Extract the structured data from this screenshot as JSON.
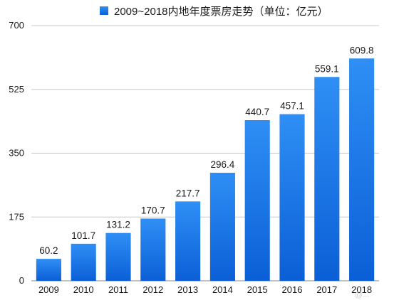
{
  "chart_data": {
    "type": "bar",
    "title": "",
    "legend": {
      "position": "top",
      "entries": [
        "2009~2018内地年度票房走势（单位：亿元）"
      ]
    },
    "categories": [
      "2009",
      "2010",
      "2011",
      "2012",
      "2013",
      "2014",
      "2015",
      "2016",
      "2017",
      "2018"
    ],
    "series": [
      {
        "name": "2009~2018内地年度票房走势（单位：亿元）",
        "values": [
          60.2,
          101.7,
          131.2,
          170.7,
          217.7,
          296.4,
          440.7,
          457.1,
          559.1,
          609.8
        ],
        "data_labels": [
          "60.2",
          "101.7",
          "131.2",
          "170.7",
          "217.7",
          "296.4",
          "440.7",
          "457.1",
          "559.1",
          "609.8"
        ]
      }
    ],
    "yticks": [
      0,
      175,
      350,
      525,
      700
    ],
    "ylim": [
      0,
      700
    ],
    "grid": true,
    "xlabel": "",
    "ylabel": "",
    "colors": {
      "bar_top": "#2f8ff5",
      "bar_bottom": "#0b5fd6",
      "grid": "#c8c8c8",
      "axis": "#8a8a8a"
    }
  },
  "watermark": "@..."
}
